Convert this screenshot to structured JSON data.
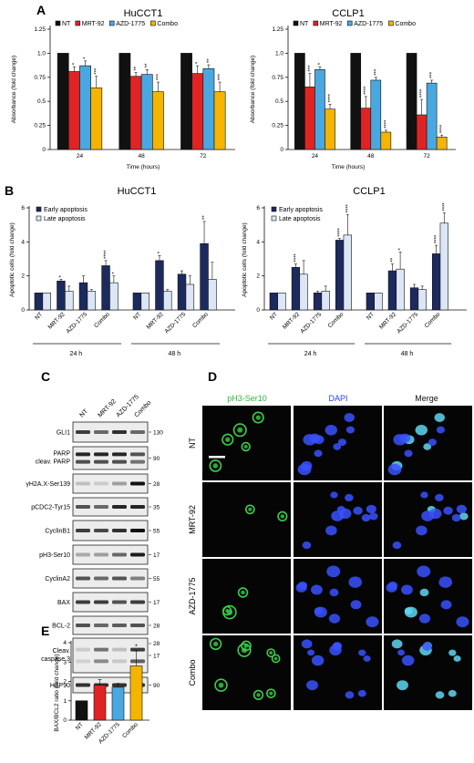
{
  "colors": {
    "NT": "#111111",
    "MRT-92": "#e02424",
    "AZD-1775": "#4aa8e0",
    "Combo": "#f5b400",
    "early": "#1c2a5e",
    "late": "#dce6f5",
    "green": "#39d04a",
    "blue": "#3a52ff",
    "cyan": "#5fd7f0"
  },
  "panel_letters": [
    "A",
    "B",
    "C",
    "D",
    "E"
  ],
  "panelA": {
    "conditions": [
      "NT",
      "MRT-92",
      "AZD-1775",
      "Combo"
    ],
    "xlabel": "Time (hours)",
    "ylabel": "Absorbance (fold change)",
    "yticks": [
      "0",
      "0.25",
      "0.5",
      "0.75",
      "1.0",
      "1.25"
    ]
  },
  "panelB": {
    "legend": [
      "Early apoptosis",
      "Late apoptosis"
    ],
    "ylabel": "Apoptotic cells (fold change)",
    "conditions": [
      "NT",
      "MRT-92",
      "AZD-1775",
      "Combo"
    ],
    "groups": [
      "24 h",
      "48 h"
    ]
  },
  "panelC": {
    "lanes": [
      "NT",
      "MRT-92",
      "AZD-1775",
      "Combo"
    ],
    "rows": [
      {
        "name": "GLI1",
        "kda": [
          "130"
        ]
      },
      {
        "name": "PARP",
        "name2": "cleav. PARP",
        "kda": [
          "90"
        ]
      },
      {
        "name": "γH2A.X-Ser139",
        "kda": [
          "28"
        ]
      },
      {
        "name": "pCDC2-Tyr15",
        "kda": [
          "35"
        ]
      },
      {
        "name": "CyclinB1",
        "kda": [
          "55"
        ]
      },
      {
        "name": "pH3-Ser10",
        "kda": [
          "17"
        ]
      },
      {
        "name": "CyclinA2",
        "kda": [
          "55"
        ]
      },
      {
        "name": "BAX",
        "kda": [
          "17"
        ]
      },
      {
        "name": "BCL-2",
        "kda": [
          "28"
        ]
      },
      {
        "name": "Cleav.",
        "name2": "caspase 3",
        "kda": [
          "17"
        ]
      },
      {
        "name": "HSP90",
        "kda": [
          "90"
        ]
      }
    ]
  },
  "panelD": {
    "columns": [
      "pH3-Ser10",
      "DAPI",
      "Merge"
    ],
    "rows": [
      "NT",
      "MRT-92",
      "AZD-1775",
      "Combo"
    ]
  },
  "chart_data": [
    {
      "type": "bar",
      "title": "HuCCT1",
      "categories": [
        "24",
        "48",
        "72"
      ],
      "xlabel": "Time (hours)",
      "ylabel": "Absorbance (fold change)",
      "ylim": [
        0,
        1.25
      ],
      "series": [
        {
          "name": "NT",
          "values": [
            1.0,
            1.0,
            1.0
          ],
          "err": [
            0,
            0,
            0
          ],
          "stars": [
            "",
            "",
            ""
          ]
        },
        {
          "name": "MRT-92",
          "values": [
            0.81,
            0.76,
            0.79
          ],
          "err": [
            0.05,
            0.04,
            0.08
          ],
          "stars": [
            "*",
            "**",
            "*"
          ]
        },
        {
          "name": "AZD-1775",
          "values": [
            0.87,
            0.78,
            0.84
          ],
          "err": [
            0.05,
            0.05,
            0.04
          ],
          "stars": [
            "*",
            "**",
            "**"
          ]
        },
        {
          "name": "Combo",
          "values": [
            0.64,
            0.6,
            0.6
          ],
          "err": [
            0.12,
            0.1,
            0.1
          ],
          "stars": [
            "***",
            "***",
            "***"
          ]
        }
      ]
    },
    {
      "type": "bar",
      "title": "CCLP1",
      "categories": [
        "24",
        "48",
        "72"
      ],
      "xlabel": "Time (hours)",
      "ylabel": "Absorbance (fold change)",
      "ylim": [
        0,
        1.25
      ],
      "series": [
        {
          "name": "NT",
          "values": [
            1.0,
            1.0,
            1.0
          ],
          "err": [
            0,
            0,
            0
          ],
          "stars": [
            "",
            "",
            ""
          ]
        },
        {
          "name": "MRT-92",
          "values": [
            0.65,
            0.43,
            0.36
          ],
          "err": [
            0.14,
            0.12,
            0.16
          ],
          "stars": [
            "***",
            "****",
            "****"
          ]
        },
        {
          "name": "AZD-1775",
          "values": [
            0.83,
            0.72,
            0.69
          ],
          "err": [
            0.03,
            0.03,
            0.03
          ],
          "stars": [
            "*",
            "***",
            "***"
          ]
        },
        {
          "name": "Combo",
          "values": [
            0.42,
            0.18,
            0.13
          ],
          "err": [
            0.05,
            0.02,
            0.02
          ],
          "stars": [
            "****",
            "****",
            "****"
          ]
        }
      ]
    },
    {
      "type": "bar",
      "title": "HuCCT1",
      "groups": [
        "24 h",
        "48 h"
      ],
      "categories": [
        "NT",
        "MRT-92",
        "AZD-1775",
        "Combo"
      ],
      "ylabel": "Apoptotic cells (fold change)",
      "ylim": [
        0,
        6
      ],
      "yticks": [
        0,
        2,
        4,
        6
      ],
      "series": [
        {
          "name": "Early apoptosis",
          "values": [
            [
              1.0,
              1.7,
              1.6,
              2.6
            ],
            [
              1.0,
              2.9,
              2.1,
              3.9
            ]
          ],
          "err": [
            [
              0,
              0.1,
              0.4,
              0.3
            ],
            [
              0,
              0.3,
              0.2,
              1.3
            ]
          ],
          "stars": [
            [
              "",
              "*",
              "",
              "****"
            ],
            [
              "",
              "*",
              "",
              "**"
            ]
          ]
        },
        {
          "name": "Late apoptosis",
          "values": [
            [
              1.0,
              1.1,
              1.1,
              1.6
            ],
            [
              1.0,
              1.1,
              1.5,
              1.8
            ]
          ],
          "err": [
            [
              0,
              0.3,
              0.1,
              0.4
            ],
            [
              0,
              0.1,
              0.5,
              1.0
            ]
          ],
          "stars": [
            [
              "",
              "",
              "",
              "*"
            ],
            [
              "",
              "",
              "",
              ""
            ]
          ]
        }
      ]
    },
    {
      "type": "bar",
      "title": "CCLP1",
      "groups": [
        "24 h",
        "48 h"
      ],
      "categories": [
        "NT",
        "MRT-92",
        "AZD-1775",
        "Combo"
      ],
      "ylabel": "Apoptotic cells (fold change)",
      "ylim": [
        0,
        6
      ],
      "yticks": [
        0,
        2,
        4,
        6
      ],
      "series": [
        {
          "name": "Early apoptosis",
          "values": [
            [
              1.0,
              2.5,
              1.0,
              4.1
            ],
            [
              1.0,
              2.3,
              1.3,
              3.3
            ]
          ],
          "err": [
            [
              0,
              0.2,
              0.1,
              0.1
            ],
            [
              0,
              0.4,
              0.2,
              0.5
            ]
          ],
          "stars": [
            [
              "",
              "****",
              "",
              "****"
            ],
            [
              "",
              "**",
              "",
              "****"
            ]
          ]
        },
        {
          "name": "Late apoptosis",
          "values": [
            [
              1.0,
              2.1,
              1.1,
              4.4
            ],
            [
              1.0,
              2.4,
              1.2,
              5.1
            ]
          ],
          "err": [
            [
              0,
              0.8,
              0.3,
              1.2
            ],
            [
              0,
              1.0,
              0.2,
              0.6
            ]
          ],
          "stars": [
            [
              "",
              "",
              "",
              "****"
            ],
            [
              "",
              "*",
              "",
              "****"
            ]
          ]
        }
      ]
    },
    {
      "type": "bar",
      "title": "",
      "categories": [
        "NT",
        "MRT-92",
        "AZD-1775",
        "Combo"
      ],
      "ylabel": "BAX/BCL2 ratio (fold change)",
      "ylim": [
        0,
        4
      ],
      "yticks": [
        0,
        1,
        2,
        3,
        4
      ],
      "values": [
        1.0,
        1.8,
        1.7,
        2.8
      ],
      "err": [
        0,
        0.3,
        0.2,
        0.8
      ],
      "stars": [
        "",
        "",
        "",
        "*"
      ]
    }
  ]
}
